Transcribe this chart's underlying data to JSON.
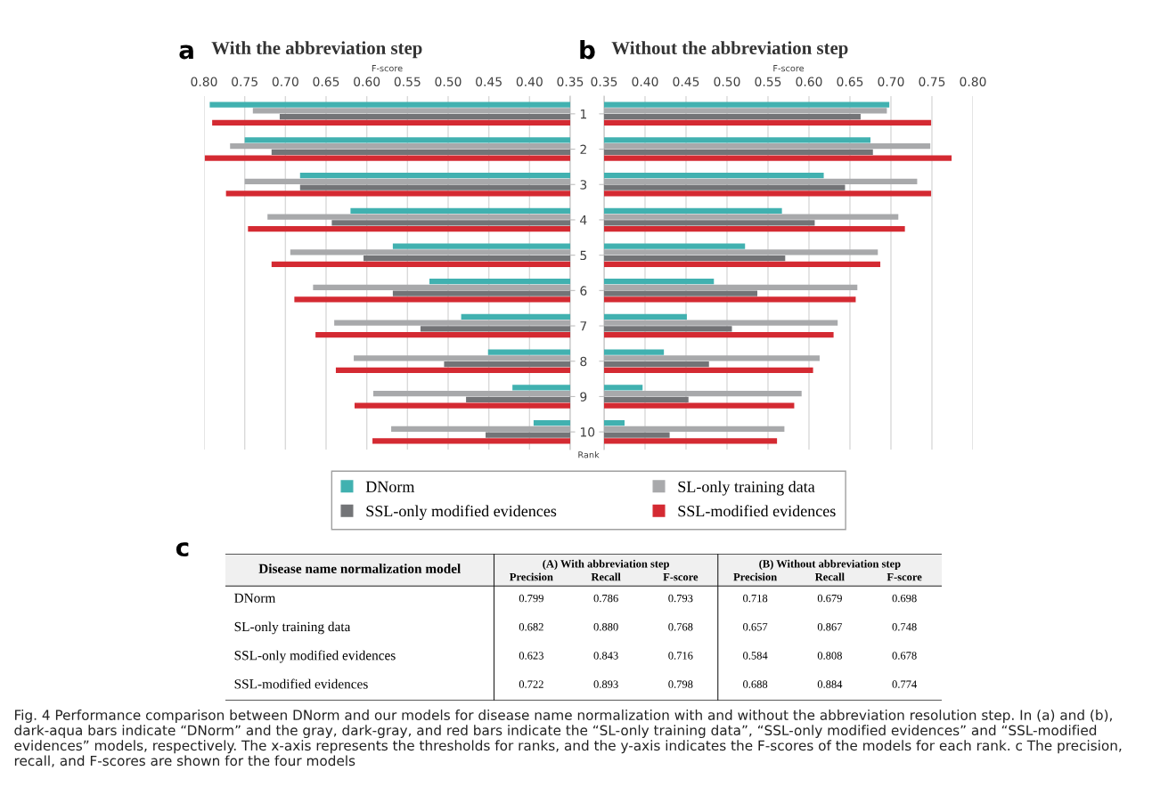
{
  "chart_data": [
    {
      "type": "bar",
      "orientation": "horizontal",
      "title": "With the abbreviation step",
      "xlabel": "F-score",
      "ylabel": "Rank",
      "annotations": [
        "a"
      ],
      "categories": [
        "1",
        "2",
        "3",
        "4",
        "5",
        "6",
        "7",
        "8",
        "9",
        "10"
      ],
      "xlim": [
        0.8,
        0.35
      ],
      "xticks": [
        {
          "value": 0.8,
          "label": "0.80"
        },
        0.75,
        {
          "value": 0.7,
          "label": "0.70"
        },
        0.65,
        {
          "value": 0.6,
          "label": "0.60"
        },
        0.55,
        {
          "value": 0.5,
          "label": "0.50"
        },
        0.45,
        {
          "value": 0.4,
          "label": "0.40"
        },
        0.35
      ],
      "grid": "x",
      "legend": "bottom",
      "series": [
        {
          "name": "DNorm",
          "color": "#41b1b0",
          "values": [
            0.793,
            0.75,
            0.682,
            0.62,
            0.568,
            0.523,
            0.484,
            0.451,
            0.421,
            0.395
          ]
        },
        {
          "name": "SL-only training data",
          "color": "#a8a9ab",
          "values": [
            0.74,
            0.768,
            0.75,
            0.722,
            0.694,
            0.666,
            0.64,
            0.616,
            0.592,
            0.57
          ]
        },
        {
          "name": "SSL-only modified evidences",
          "color": "#737477",
          "values": [
            0.707,
            0.717,
            0.682,
            0.643,
            0.604,
            0.568,
            0.534,
            0.505,
            0.478,
            0.454
          ]
        },
        {
          "name": "SSL-modified evidences",
          "color": "#d42a32",
          "values": [
            0.79,
            0.799,
            0.773,
            0.746,
            0.717,
            0.689,
            0.663,
            0.638,
            0.615,
            0.593
          ]
        }
      ]
    },
    {
      "type": "bar",
      "orientation": "horizontal",
      "title": "Without the abbreviation step",
      "xlabel": "F-score",
      "annotations": [
        "b"
      ],
      "categories": [
        "1",
        "2",
        "3",
        "4",
        "5",
        "6",
        "7",
        "8",
        "9",
        "10"
      ],
      "tick_labels": "x",
      "xlim": [
        0.35,
        0.8
      ],
      "xticks": [
        0.35,
        {
          "value": 0.4,
          "label": "0.40"
        },
        0.45,
        {
          "value": 0.5,
          "label": "0.50"
        },
        0.55,
        {
          "value": 0.6,
          "label": "0.60"
        },
        0.65,
        {
          "value": 0.7,
          "label": "0.70"
        },
        0.75,
        {
          "value": 0.8,
          "label": "0.80"
        }
      ],
      "grid": "x",
      "series": [
        {
          "color": "#41b1b0",
          "values": [
            0.698,
            0.675,
            0.618,
            0.567,
            0.522,
            0.484,
            0.451,
            0.423,
            0.397,
            0.375
          ]
        },
        {
          "color": "#a8a9ab",
          "values": [
            0.695,
            0.748,
            0.732,
            0.709,
            0.684,
            0.659,
            0.635,
            0.613,
            0.591,
            0.57
          ]
        },
        {
          "color": "#737477",
          "values": [
            0.663,
            0.678,
            0.644,
            0.607,
            0.571,
            0.537,
            0.506,
            0.478,
            0.453,
            0.43
          ]
        },
        {
          "color": "#d42a32",
          "values": [
            0.749,
            0.774,
            0.749,
            0.717,
            0.687,
            0.657,
            0.63,
            0.605,
            0.582,
            0.561
          ]
        }
      ]
    },
    {
      "type": "other",
      "annotations": [
        "c",
        "Disease name normalization model",
        "(A) With abbreviation step",
        "(B) Without abbreviation step",
        "Fig. 4 Performance comparison between DNorm and our models for disease name normalization with and without the abbreviation resolution step. In (a) and (b), dark-aqua bars indicate “DNorm” and the gray, dark-gray, and red bars indicate the “SL-only training data”, “SSL-only modified evidences” and “SSL-modified evidences” models, respectively. The x-axis represents the thresholds for ranks, and the y-axis indicates the F-scores of the models for each rank. c The precision, recall, and F-scores are shown for the four models"
      ],
      "categories": [
        "Precision",
        "Recall",
        "F-score",
        "Precision",
        "Recall",
        "F-score"
      ],
      "y_categories": [
        "DNorm",
        "SL-only training data",
        "SSL-only modified evidences",
        "SSL-modified evidences"
      ],
      "cell_labels": [
        [
          "0.799",
          "0.786",
          "0.793",
          "0.718",
          "0.679",
          "0.698"
        ],
        [
          "0.682",
          "0.880",
          "0.768",
          "0.657",
          "0.867",
          "0.748"
        ],
        [
          "0.623",
          "0.843",
          "0.716",
          "0.584",
          "0.808",
          "0.678"
        ],
        [
          "0.722",
          "0.893",
          "0.798",
          "0.688",
          "0.884",
          "0.774"
        ]
      ]
    }
  ]
}
